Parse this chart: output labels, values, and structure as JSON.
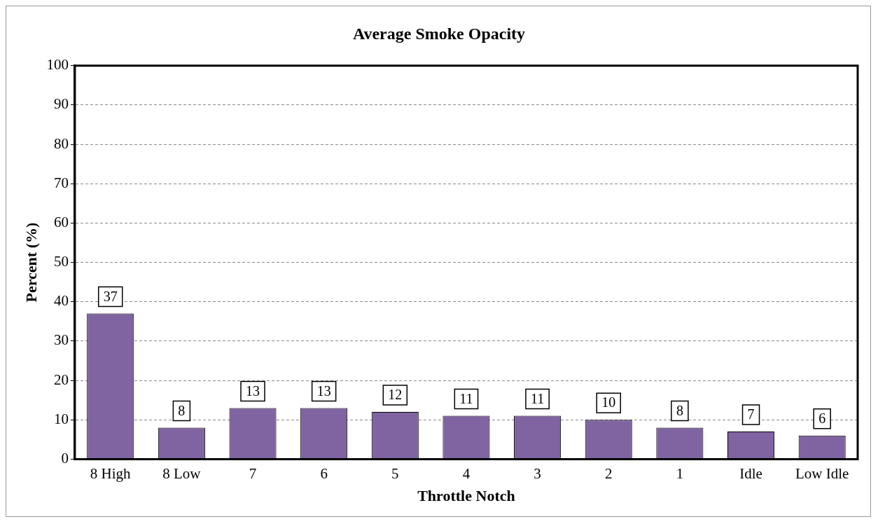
{
  "chart_data": {
    "type": "bar",
    "title": "Average Smoke Opacity",
    "xlabel": "Throttle Notch",
    "ylabel": "Percent (%)",
    "categories": [
      "8 High",
      "8 Low",
      "7",
      "6",
      "5",
      "4",
      "3",
      "2",
      "1",
      "Idle",
      "Low Idle"
    ],
    "values": [
      37,
      8,
      13,
      13,
      12,
      11,
      11,
      10,
      8,
      7,
      6
    ],
    "color": "#8064a2",
    "ylim": [
      0,
      100
    ],
    "yticks": [
      0,
      10,
      20,
      30,
      40,
      50,
      60,
      70,
      80,
      90,
      100
    ],
    "grid": "y",
    "data_labels": true,
    "legend": false
  }
}
